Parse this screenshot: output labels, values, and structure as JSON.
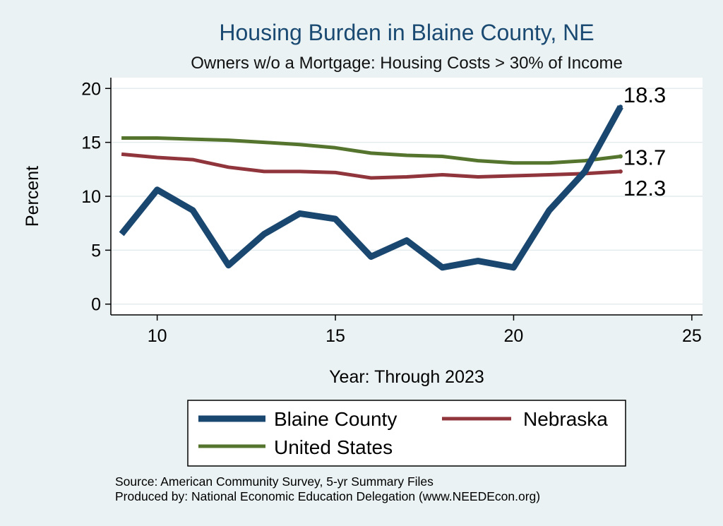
{
  "chart_data": {
    "type": "line",
    "title": "Housing Burden in Blaine County, NE",
    "subtitle": "Owners w/o a Mortgage: Housing Costs > 30% of Income",
    "xlabel": "Year: Through 2023",
    "ylabel": "Percent",
    "xlim": [
      8.7,
      25.3
    ],
    "ylim": [
      -1.0,
      21.0
    ],
    "xticks": [
      10,
      15,
      20,
      25
    ],
    "yticks": [
      0,
      5,
      10,
      15,
      20
    ],
    "x": [
      9,
      10,
      11,
      12,
      13,
      14,
      15,
      16,
      17,
      18,
      19,
      20,
      21,
      22,
      23
    ],
    "series": [
      {
        "name": "Blaine County",
        "color": "#1a476f",
        "values": [
          6.5,
          10.6,
          8.7,
          3.6,
          6.5,
          8.4,
          7.9,
          4.4,
          5.9,
          3.4,
          4.0,
          3.4,
          8.7,
          12.3,
          18.3
        ],
        "end_label": "18.3"
      },
      {
        "name": "Nebraska",
        "color": "#90353b",
        "values": [
          13.9,
          13.6,
          13.4,
          12.7,
          12.3,
          12.3,
          12.2,
          11.7,
          11.8,
          12.0,
          11.8,
          11.9,
          12.0,
          12.1,
          12.3
        ],
        "end_label": "12.3"
      },
      {
        "name": "United States",
        "color": "#55752f",
        "values": [
          15.4,
          15.4,
          15.3,
          15.2,
          15.0,
          14.8,
          14.5,
          14.0,
          13.8,
          13.7,
          13.3,
          13.1,
          13.1,
          13.3,
          13.7
        ],
        "end_label": "13.7"
      }
    ],
    "legend": "bottom",
    "grid": true
  },
  "notes": {
    "source": "Source: American Community Survey, 5-yr Summary Files",
    "produced_by": "Produced by: National Economic Education Delegation (www.NEEDEcon.org)"
  },
  "colors": {
    "page_background": "#eaf2f3",
    "plot_background": "#ffffff",
    "grid": "#e4ebee",
    "title": "#1a4a72"
  }
}
